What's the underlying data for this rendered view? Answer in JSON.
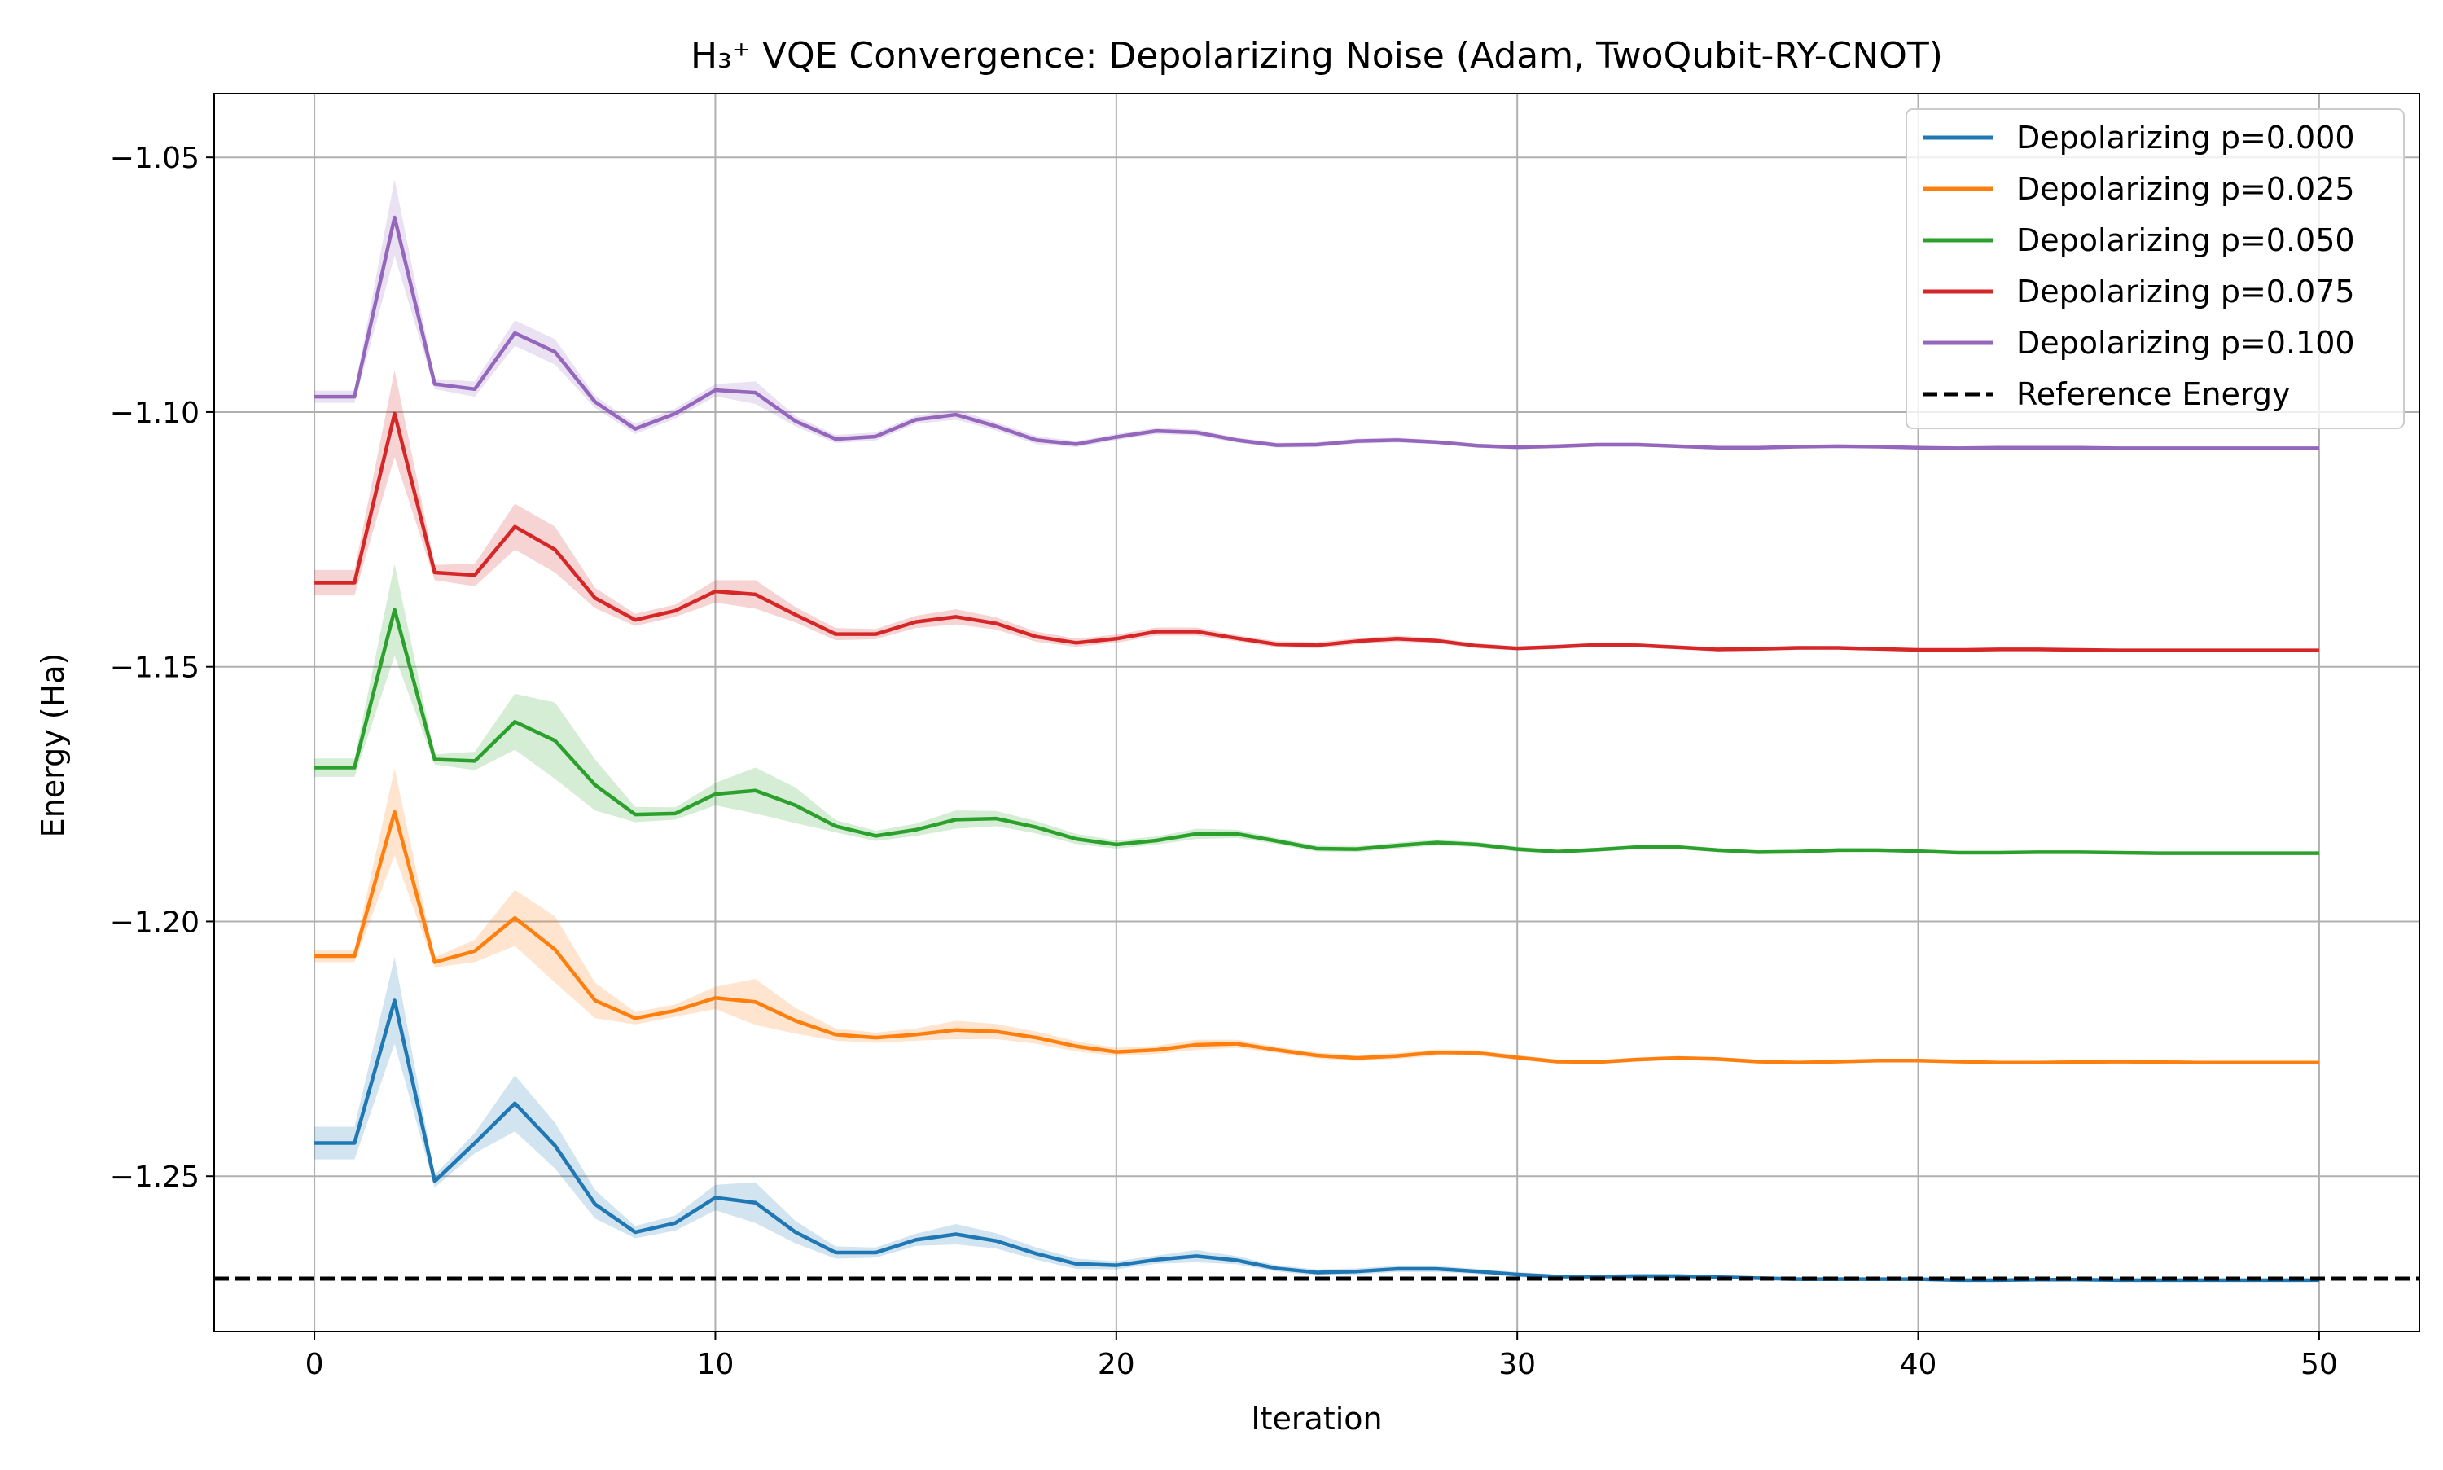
{
  "chart_data": {
    "type": "line",
    "title": "H₃⁺ VQE Convergence: Depolarizing Noise (Adam, TwoQubit-RY-CNOT)",
    "xlabel": "Iteration",
    "ylabel": "Energy (Ha)",
    "xlim": [
      -2.5,
      52.5
    ],
    "ylim": [
      -1.2805,
      -1.0375
    ],
    "xticks": [
      0,
      10,
      20,
      30,
      40,
      50
    ],
    "yticks": [
      -1.25,
      -1.2,
      -1.15,
      -1.1,
      -1.05
    ],
    "xtick_labels": [
      "0",
      "10",
      "20",
      "30",
      "40",
      "50"
    ],
    "ytick_labels": [
      "−1.25",
      "−1.20",
      "−1.15",
      "−1.10",
      "−1.05"
    ],
    "grid": true,
    "legend_position": "top-right",
    "x": [
      0,
      1,
      2,
      3,
      4,
      5,
      6,
      7,
      8,
      9,
      10,
      11,
      12,
      13,
      14,
      15,
      16,
      17,
      18,
      19,
      20,
      21,
      22,
      23,
      24,
      25,
      26,
      27,
      28,
      29,
      30,
      31,
      32,
      33,
      34,
      35,
      36,
      37,
      38,
      39,
      40,
      41,
      42,
      43,
      44,
      45,
      46,
      47,
      48,
      49,
      50
    ],
    "series": [
      {
        "name": "Depolarizing p=0.000",
        "color": "#1f77b4",
        "values": [
          -1.2435,
          -1.2435,
          -1.2155,
          -1.251,
          -1.2435,
          -1.2357,
          -1.244,
          -1.2555,
          -1.261,
          -1.2592,
          -1.2542,
          -1.2552,
          -1.261,
          -1.265,
          -1.265,
          -1.2625,
          -1.2614,
          -1.2627,
          -1.2652,
          -1.2672,
          -1.2675,
          -1.2664,
          -1.2657,
          -1.2665,
          -1.2681,
          -1.2689,
          -1.2687,
          -1.2682,
          -1.2682,
          -1.2687,
          -1.2693,
          -1.2697,
          -1.2697,
          -1.2696,
          -1.2696,
          -1.2698,
          -1.27,
          -1.2702,
          -1.2702,
          -1.2702,
          -1.2702,
          -1.2704,
          -1.2704,
          -1.2703,
          -1.2703,
          -1.2704,
          -1.2704,
          -1.2704,
          -1.2704,
          -1.2704,
          -1.2704
        ],
        "band": [
          0.0032,
          0.0032,
          0.0085,
          0.0012,
          0.002,
          0.0055,
          0.0045,
          0.0028,
          0.0012,
          0.0015,
          0.0025,
          0.004,
          0.0022,
          0.0012,
          0.001,
          0.0012,
          0.002,
          0.0015,
          0.0012,
          0.001,
          0.0008,
          0.0008,
          0.0012,
          0.0008,
          0.0006,
          0.0006,
          0.0006,
          0.0006,
          0.0006,
          0.0005,
          0.0005,
          0.0004,
          0.0004,
          0.0004,
          0.0004,
          0.0004,
          0.0004,
          0.0004,
          0.0004,
          0.0003,
          0.0003,
          0.0003,
          0.0003,
          0.0003,
          0.0003,
          0.0003,
          0.0003,
          0.0003,
          0.0003,
          0.0003,
          0.0003
        ]
      },
      {
        "name": "Depolarizing p=0.025",
        "color": "#ff7f0e",
        "values": [
          -1.2068,
          -1.2068,
          -1.1785,
          -1.208,
          -1.2058,
          -1.1993,
          -1.2055,
          -1.2155,
          -1.219,
          -1.2175,
          -1.215,
          -1.2158,
          -1.2195,
          -1.2222,
          -1.2228,
          -1.2222,
          -1.2213,
          -1.2216,
          -1.2228,
          -1.2245,
          -1.2256,
          -1.2252,
          -1.2242,
          -1.224,
          -1.2252,
          -1.2263,
          -1.2268,
          -1.2264,
          -1.2257,
          -1.2258,
          -1.2267,
          -1.2275,
          -1.2276,
          -1.2271,
          -1.2268,
          -1.227,
          -1.2275,
          -1.2277,
          -1.2275,
          -1.2273,
          -1.2273,
          -1.2275,
          -1.2277,
          -1.2277,
          -1.2276,
          -1.2275,
          -1.2276,
          -1.2277,
          -1.2277,
          -1.2277,
          -1.2277
        ],
        "band": [
          0.0012,
          0.0012,
          0.0085,
          0.001,
          0.0022,
          0.0055,
          0.0065,
          0.0035,
          0.0012,
          0.0012,
          0.0022,
          0.0045,
          0.0025,
          0.0012,
          0.001,
          0.0012,
          0.0018,
          0.0015,
          0.0012,
          0.001,
          0.0008,
          0.0008,
          0.001,
          0.0008,
          0.0006,
          0.0006,
          0.0006,
          0.0006,
          0.0006,
          0.0005,
          0.0005,
          0.0004,
          0.0004,
          0.0004,
          0.0004,
          0.0004,
          0.0004,
          0.0004,
          0.0004,
          0.0003,
          0.0003,
          0.0003,
          0.0003,
          0.0003,
          0.0003,
          0.0003,
          0.0003,
          0.0003,
          0.0003,
          0.0003,
          0.0003
        ]
      },
      {
        "name": "Depolarizing p=0.050",
        "color": "#2ca02c",
        "values": [
          -1.1698,
          -1.1698,
          -1.1388,
          -1.1682,
          -1.1685,
          -1.1608,
          -1.1645,
          -1.1732,
          -1.179,
          -1.1788,
          -1.175,
          -1.1743,
          -1.1772,
          -1.1813,
          -1.1832,
          -1.182,
          -1.18,
          -1.1798,
          -1.1815,
          -1.1838,
          -1.1849,
          -1.1841,
          -1.1828,
          -1.1828,
          -1.1842,
          -1.1857,
          -1.1858,
          -1.1851,
          -1.1845,
          -1.1849,
          -1.1858,
          -1.1863,
          -1.1859,
          -1.1854,
          -1.1854,
          -1.186,
          -1.1864,
          -1.1863,
          -1.186,
          -1.186,
          -1.1862,
          -1.1865,
          -1.1865,
          -1.1864,
          -1.1864,
          -1.1865,
          -1.1866,
          -1.1866,
          -1.1866,
          -1.1866,
          -1.1866
        ],
        "band": [
          0.0018,
          0.0018,
          0.009,
          0.001,
          0.0018,
          0.0055,
          0.0075,
          0.005,
          0.0015,
          0.0012,
          0.0022,
          0.0045,
          0.0035,
          0.0012,
          0.001,
          0.0012,
          0.0018,
          0.0015,
          0.0012,
          0.001,
          0.0008,
          0.0008,
          0.001,
          0.0008,
          0.0006,
          0.0006,
          0.0006,
          0.0006,
          0.0006,
          0.0005,
          0.0005,
          0.0004,
          0.0004,
          0.0004,
          0.0004,
          0.0004,
          0.0004,
          0.0004,
          0.0004,
          0.0003,
          0.0003,
          0.0003,
          0.0003,
          0.0003,
          0.0003,
          0.0003,
          0.0003,
          0.0003,
          0.0003,
          0.0003,
          0.0003
        ]
      },
      {
        "name": "Depolarizing p=0.075",
        "color": "#d62728",
        "values": [
          -1.1335,
          -1.1335,
          -1.1003,
          -1.1315,
          -1.132,
          -1.1225,
          -1.127,
          -1.1365,
          -1.1408,
          -1.139,
          -1.1352,
          -1.1358,
          -1.1398,
          -1.1436,
          -1.1436,
          -1.1412,
          -1.1402,
          -1.1415,
          -1.1441,
          -1.1453,
          -1.1445,
          -1.1431,
          -1.1431,
          -1.1444,
          -1.1456,
          -1.1458,
          -1.145,
          -1.1445,
          -1.1449,
          -1.1459,
          -1.1464,
          -1.1461,
          -1.1457,
          -1.1458,
          -1.1462,
          -1.1466,
          -1.1465,
          -1.1463,
          -1.1463,
          -1.1465,
          -1.1467,
          -1.1467,
          -1.1466,
          -1.1466,
          -1.1467,
          -1.1468,
          -1.1468,
          -1.1468,
          -1.1468,
          -1.1468,
          -1.1468
        ],
        "band": [
          0.0025,
          0.0025,
          0.0085,
          0.0015,
          0.0022,
          0.0045,
          0.0045,
          0.002,
          0.0012,
          0.0012,
          0.0022,
          0.0028,
          0.0015,
          0.0012,
          0.001,
          0.0012,
          0.0015,
          0.0012,
          0.001,
          0.0008,
          0.0008,
          0.0008,
          0.0008,
          0.0006,
          0.0006,
          0.0006,
          0.0006,
          0.0006,
          0.0005,
          0.0005,
          0.0004,
          0.0004,
          0.0004,
          0.0004,
          0.0004,
          0.0004,
          0.0004,
          0.0004,
          0.0003,
          0.0003,
          0.0003,
          0.0003,
          0.0003,
          0.0003,
          0.0003,
          0.0003,
          0.0003,
          0.0003,
          0.0003,
          0.0003,
          0.0003
        ]
      },
      {
        "name": "Depolarizing p=0.100",
        "color": "#9467bd",
        "values": [
          -1.097,
          -1.097,
          -1.0618,
          -1.0945,
          -1.0955,
          -1.0845,
          -1.0882,
          -1.098,
          -1.1033,
          -1.1003,
          -1.0957,
          -1.0962,
          -1.1018,
          -1.1053,
          -1.1048,
          -1.1015,
          -1.1005,
          -1.1028,
          -1.1055,
          -1.1063,
          -1.1049,
          -1.1037,
          -1.104,
          -1.1055,
          -1.1065,
          -1.1064,
          -1.1057,
          -1.1055,
          -1.1059,
          -1.1066,
          -1.1069,
          -1.1067,
          -1.1064,
          -1.1064,
          -1.1067,
          -1.107,
          -1.107,
          -1.1068,
          -1.1067,
          -1.1068,
          -1.107,
          -1.1071,
          -1.107,
          -1.107,
          -1.107,
          -1.1071,
          -1.1071,
          -1.1071,
          -1.1071,
          -1.1071,
          -1.1071
        ],
        "band": [
          0.0012,
          0.0012,
          0.0075,
          0.001,
          0.0015,
          0.0025,
          0.0025,
          0.0012,
          0.001,
          0.001,
          0.0012,
          0.0022,
          0.001,
          0.0008,
          0.0008,
          0.0008,
          0.001,
          0.0008,
          0.0008,
          0.0006,
          0.0006,
          0.0006,
          0.0006,
          0.0005,
          0.0005,
          0.0005,
          0.0005,
          0.0005,
          0.0004,
          0.0004,
          0.0004,
          0.0004,
          0.0004,
          0.0004,
          0.0003,
          0.0003,
          0.0003,
          0.0003,
          0.0003,
          0.0003,
          0.0003,
          0.0003,
          0.0003,
          0.0003,
          0.0003,
          0.0003,
          0.0003,
          0.0003,
          0.0003,
          0.0003,
          0.0003
        ]
      }
    ],
    "reference": {
      "name": "Reference Energy",
      "value": -1.2701,
      "color": "#000000",
      "style": "dashed"
    }
  }
}
